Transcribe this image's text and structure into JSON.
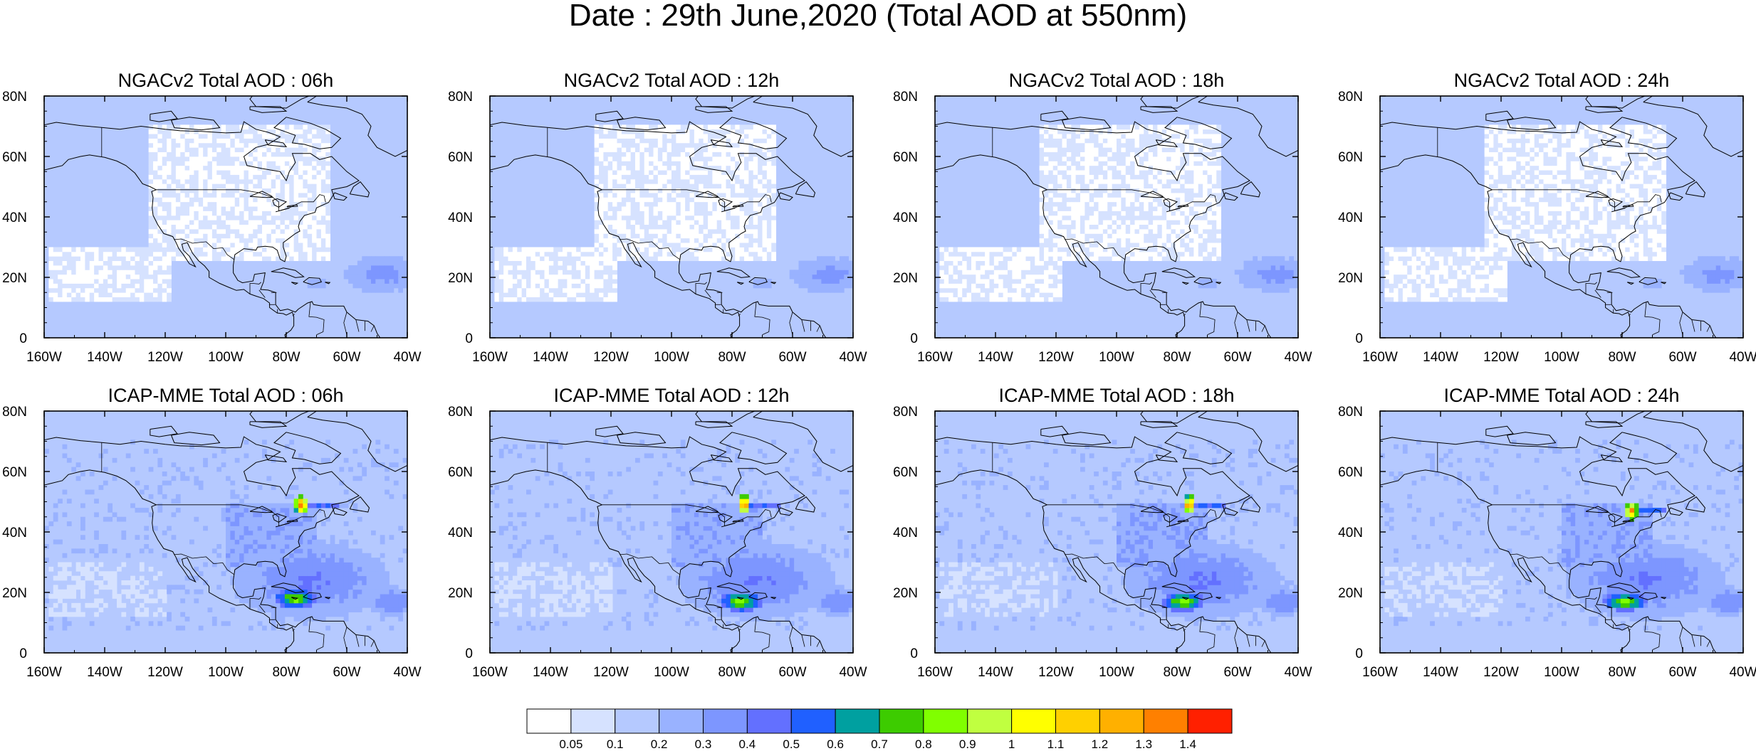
{
  "title": "Date : 29th June,2020 (Total AOD at 550nm)",
  "chart_data": [
    {
      "type": "heatmap",
      "title": "NGACv2 Total AOD : 06h",
      "model": "NGACv2",
      "hour": "06h",
      "hotspots": []
    },
    {
      "type": "heatmap",
      "title": "NGACv2 Total AOD : 12h",
      "model": "NGACv2",
      "hour": "12h",
      "hotspots": []
    },
    {
      "type": "heatmap",
      "title": "NGACv2 Total AOD : 18h",
      "model": "NGACv2",
      "hour": "18h",
      "hotspots": []
    },
    {
      "type": "heatmap",
      "title": "NGACv2 Total AOD : 24h",
      "model": "NGACv2",
      "hour": "24h",
      "hotspots": []
    },
    {
      "type": "heatmap",
      "title": "ICAP-MME Total AOD : 06h",
      "model": "ICAP-MME",
      "hour": "06h",
      "hotspots": [
        {
          "lon": -75,
          "lat": 49,
          "max_aod": 1.4
        },
        {
          "lon": -77,
          "lat": 18,
          "max_aod": 0.9
        }
      ]
    },
    {
      "type": "heatmap",
      "title": "ICAP-MME Total AOD : 12h",
      "model": "ICAP-MME",
      "hour": "12h",
      "hotspots": [
        {
          "lon": -76,
          "lat": 49,
          "max_aod": 1.4
        },
        {
          "lon": -77,
          "lat": 17,
          "max_aod": 0.9
        }
      ]
    },
    {
      "type": "heatmap",
      "title": "ICAP-MME Total AOD : 18h",
      "model": "ICAP-MME",
      "hour": "18h",
      "hotspots": [
        {
          "lon": -76,
          "lat": 49,
          "max_aod": 1.4
        },
        {
          "lon": -78,
          "lat": 17,
          "max_aod": 0.9
        }
      ]
    },
    {
      "type": "heatmap",
      "title": "ICAP-MME Total AOD : 24h",
      "model": "ICAP-MME",
      "hour": "24h",
      "hotspots": [
        {
          "lon": -77,
          "lat": 47,
          "max_aod": 1.4
        },
        {
          "lon": -79,
          "lat": 17,
          "max_aod": 0.9
        }
      ]
    }
  ],
  "axes": {
    "xlim": [
      -160,
      -40
    ],
    "ylim": [
      0,
      80
    ],
    "x_ticks": [
      "160W",
      "140W",
      "120W",
      "100W",
      "80W",
      "60W",
      "40W"
    ],
    "y_ticks": [
      "0",
      "20N",
      "40N",
      "60N",
      "80N"
    ]
  },
  "colorbar": {
    "labels": [
      "0.05",
      "0.1",
      "0.2",
      "0.3",
      "0.4",
      "0.5",
      "0.6",
      "0.7",
      "0.8",
      "0.9",
      "1",
      "1.1",
      "1.2",
      "1.3",
      "1.4"
    ],
    "colors": [
      "#ffffff",
      "#d6e2ff",
      "#b5c9ff",
      "#99b2ff",
      "#7d96ff",
      "#6370ff",
      "#2060ff",
      "#00a0a0",
      "#3dcc00",
      "#80ff00",
      "#c0ff40",
      "#ffff00",
      "#ffd000",
      "#ffb000",
      "#ff8000",
      "#ff2000"
    ]
  }
}
